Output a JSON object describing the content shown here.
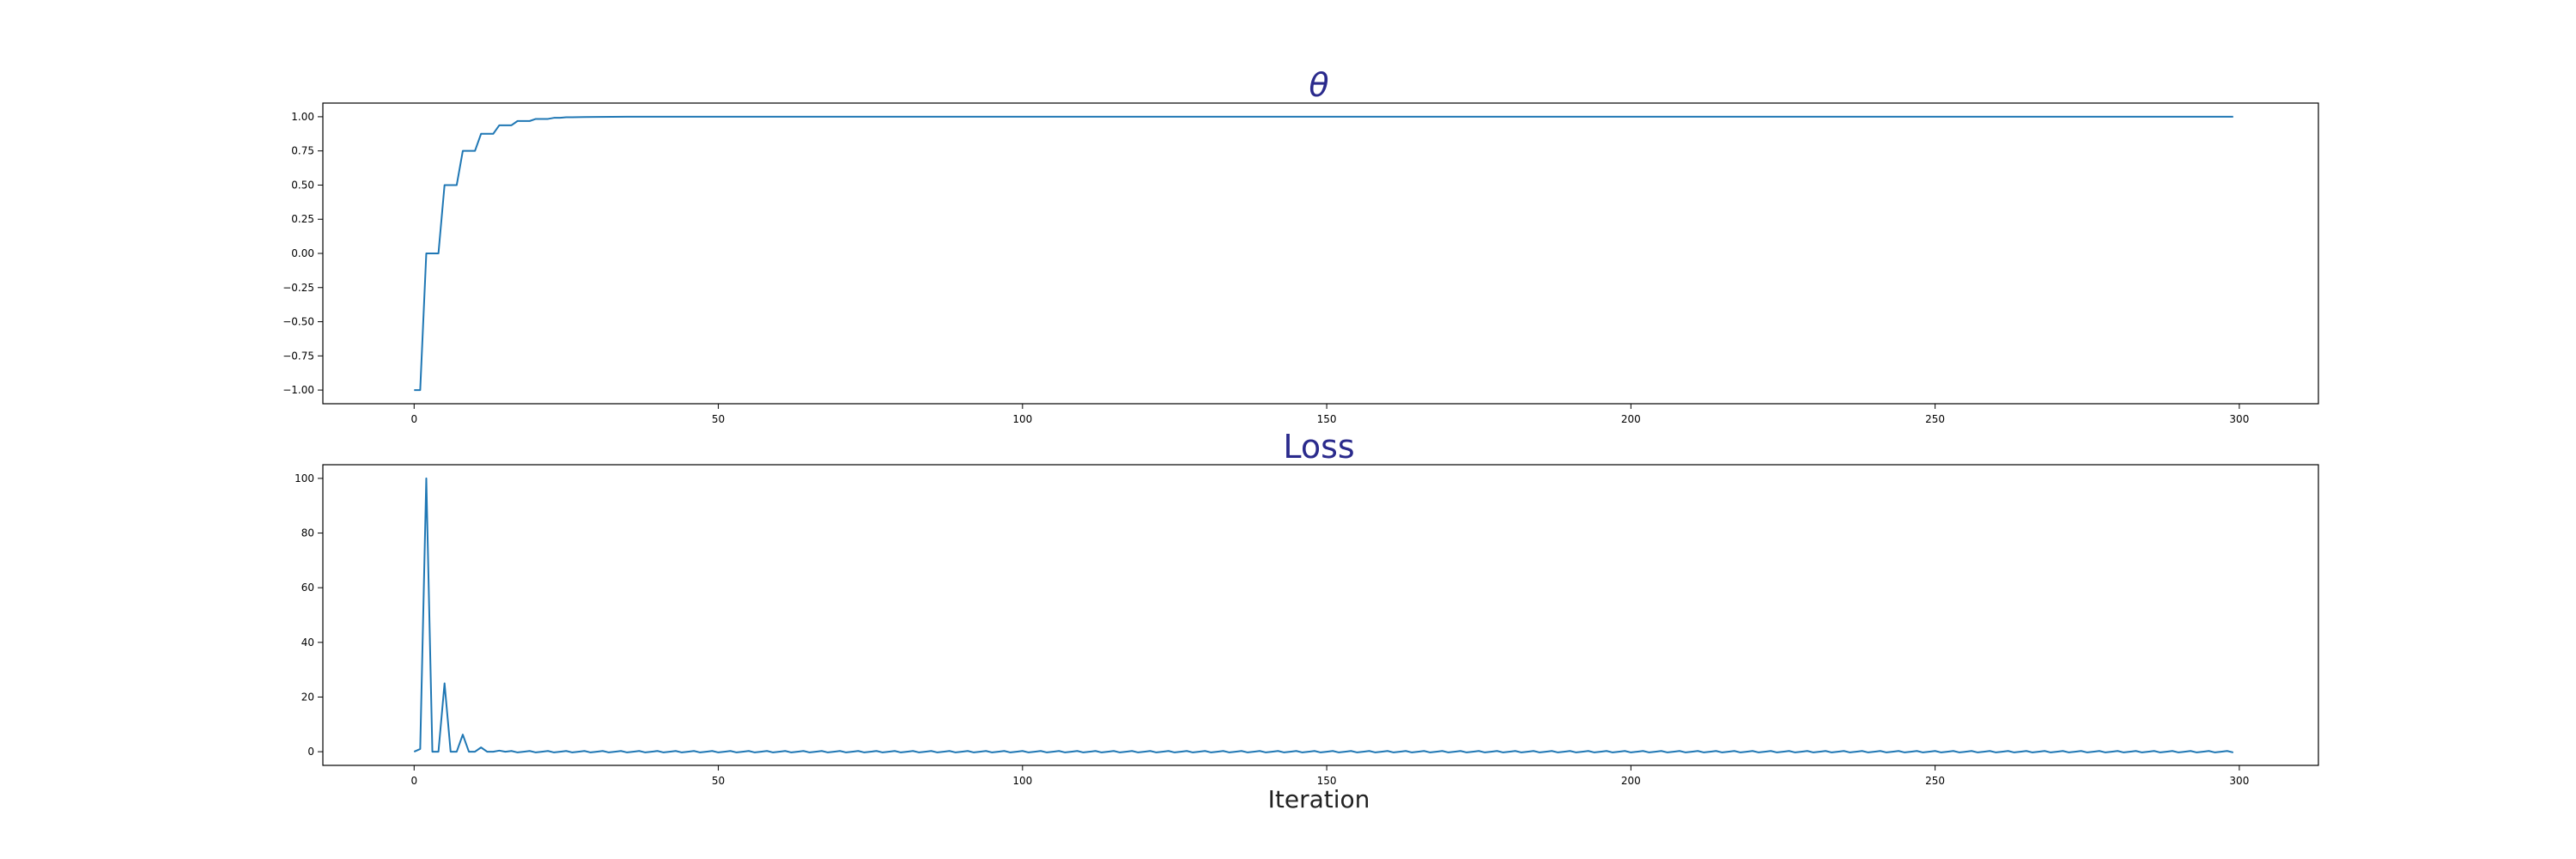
{
  "colors": {
    "line": "#1f77b4",
    "title": "#2a2a8c",
    "axis": "#000000"
  },
  "chart_data": [
    {
      "type": "line",
      "title": "θ",
      "xlabel": "",
      "ylabel": "",
      "xlim": [
        -15,
        313
      ],
      "ylim": [
        -1.1,
        1.1
      ],
      "xticks": [
        0,
        50,
        100,
        150,
        200,
        250,
        300
      ],
      "yticks": [
        -1.0,
        -0.75,
        -0.5,
        -0.25,
        0.0,
        0.25,
        0.5,
        0.75,
        1.0
      ],
      "ytick_labels": [
        "−1.00",
        "−0.75",
        "−0.50",
        "−0.25",
        "0.00",
        "0.25",
        "0.50",
        "0.75",
        "1.00"
      ],
      "grid": false,
      "series": [
        {
          "x": [
            0,
            1,
            2,
            3,
            4,
            5,
            6,
            7,
            8,
            9,
            10,
            11,
            12,
            13,
            14,
            15,
            16,
            17,
            18,
            19,
            20,
            21,
            22,
            23,
            24,
            25,
            26,
            28,
            30,
            35,
            40,
            299
          ],
          "y": [
            -1.0,
            -1.0,
            0.0,
            0.0,
            0.0,
            0.5,
            0.5,
            0.5,
            0.75,
            0.75,
            0.75,
            0.875,
            0.875,
            0.875,
            0.9375,
            0.9375,
            0.9375,
            0.96875,
            0.96875,
            0.96875,
            0.984,
            0.984,
            0.984,
            0.992,
            0.992,
            0.996,
            0.996,
            0.998,
            0.999,
            1.0,
            1.0,
            1.0
          ],
          "oscillation": {
            "from": 25,
            "to": 299,
            "amplitude": 0.004,
            "period": 3
          }
        }
      ]
    },
    {
      "type": "line",
      "title": "Loss",
      "xlabel": "Iteration",
      "ylabel": "",
      "xlim": [
        -15,
        313
      ],
      "ylim": [
        -5,
        105
      ],
      "xticks": [
        0,
        50,
        100,
        150,
        200,
        250,
        300
      ],
      "yticks": [
        0,
        20,
        40,
        60,
        80,
        100
      ],
      "grid": false,
      "series": [
        {
          "x": [
            0,
            1,
            2,
            3,
            4,
            5,
            6,
            7,
            8,
            9,
            10,
            11,
            12,
            13,
            14,
            15
          ],
          "y": [
            0,
            1,
            100,
            0,
            0,
            25,
            0,
            0,
            6.25,
            0,
            0,
            1.56,
            0,
            0,
            0.4,
            0
          ],
          "oscillation": {
            "from": 15,
            "to": 299,
            "amplitude": 0.3,
            "period": 3
          }
        }
      ]
    }
  ]
}
